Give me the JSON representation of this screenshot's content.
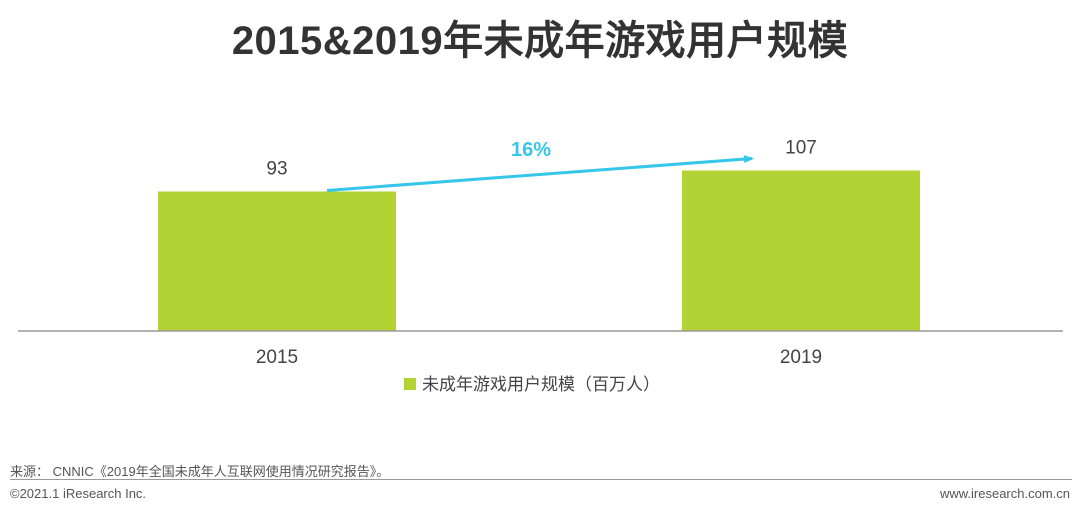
{
  "chart_data": {
    "type": "bar",
    "title": "2015&2019年未成年游戏用户规模",
    "categories": [
      "2015",
      "2019"
    ],
    "series": [
      {
        "name": "未成年游戏用户规模（百万人）",
        "values": [
          93,
          107
        ]
      }
    ],
    "data_labels": [
      "93",
      "107"
    ],
    "annotation": "16%",
    "legend_position": "bottom",
    "grid": false,
    "ylim": [
      0,
      120
    ],
    "colors": {
      "bar": "#b3d233",
      "arrow": "#35c6ea",
      "axis": "#9a9a9a",
      "text": "#444444"
    }
  },
  "footer": {
    "source": "来源： CNNIC《2019年全国未成年人互联网使用情况研究报告》。",
    "copyright": "©2021.1 iResearch Inc.",
    "website": "www.iresearch.com.cn"
  }
}
